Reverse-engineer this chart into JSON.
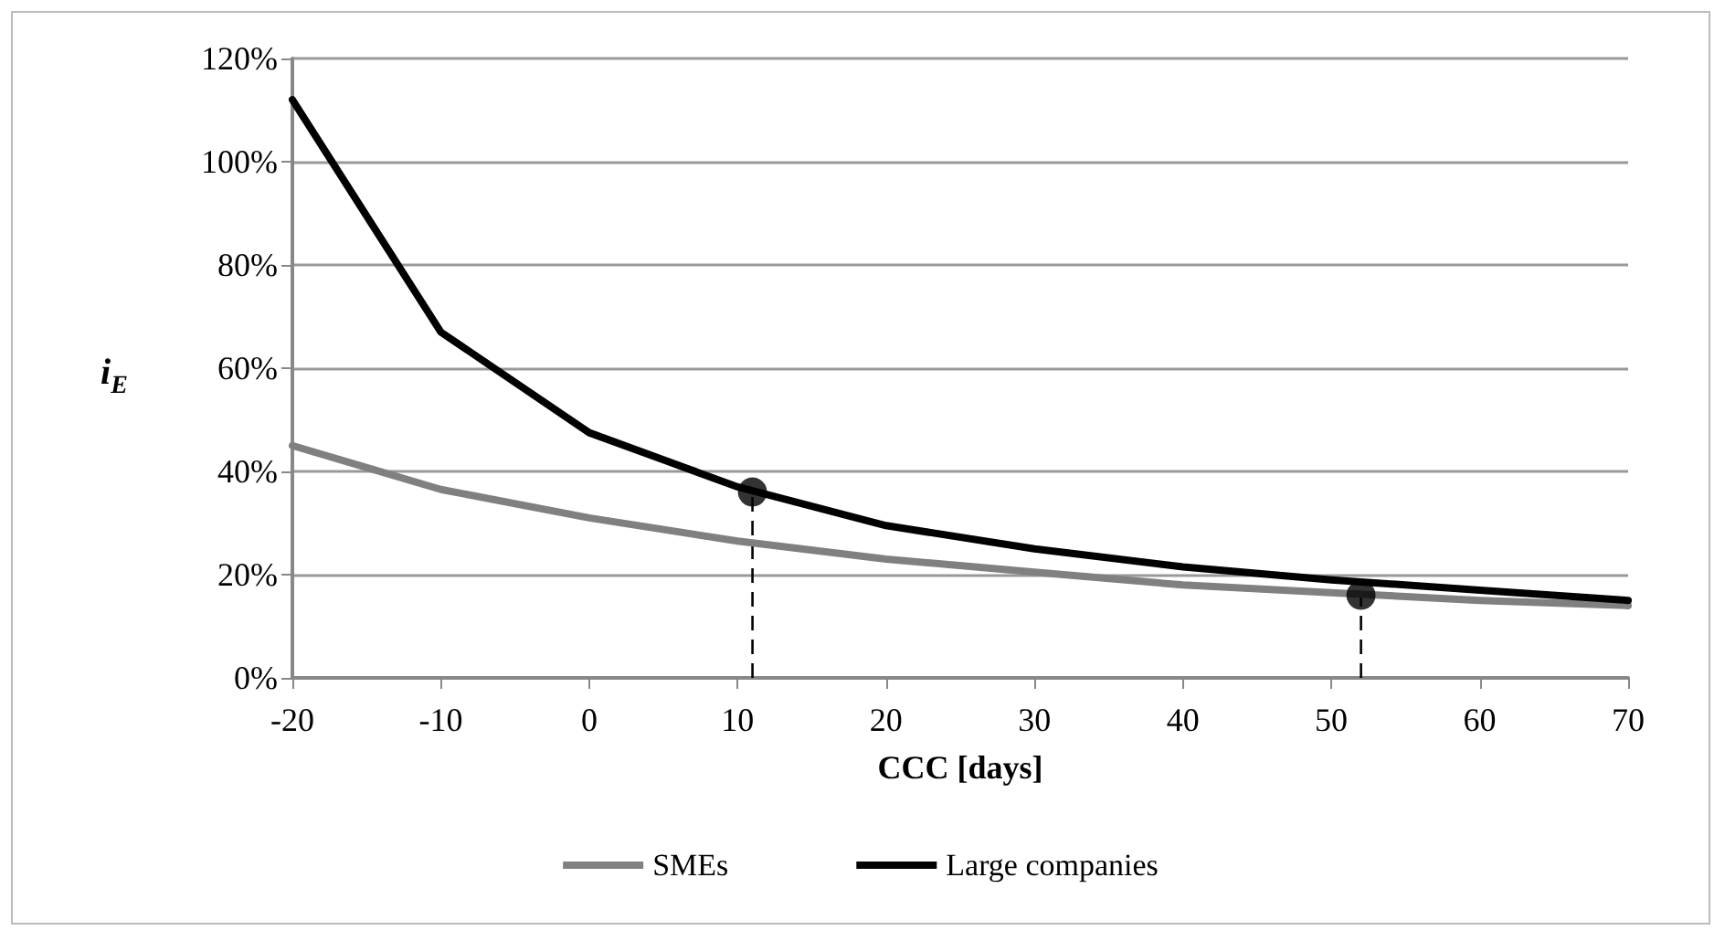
{
  "chart_data": {
    "type": "line",
    "xlabel": "CCC [days]",
    "ylabel": "i$_{E}$",
    "x": [
      -20,
      -10,
      0,
      10,
      20,
      30,
      40,
      50,
      60,
      70
    ],
    "series": [
      {
        "name": "SMEs",
        "color": "#808080",
        "values": [
          45,
          36.5,
          31,
          26.5,
          23,
          20.5,
          18,
          16.5,
          15,
          14
        ]
      },
      {
        "name": "Large companies",
        "color": "#000000",
        "values": [
          112,
          67,
          47.5,
          37,
          29.5,
          25,
          21.5,
          19,
          17,
          15
        ]
      },
      {
        "type": "scatter",
        "color": "#000000",
        "x": [
          11,
          52
        ],
        "values": [
          36,
          16
        ],
        "marker": "circle"
      }
    ],
    "xlim": [
      -20,
      70
    ],
    "xticks": [
      -20,
      -10,
      0,
      10,
      20,
      30,
      40,
      50,
      60,
      70
    ],
    "ylim": [
      0,
      120
    ],
    "yticks": [
      {
        "value": 0,
        "label": "0%"
      },
      {
        "value": 20,
        "label": "20%"
      },
      {
        "value": 40,
        "label": "40%"
      },
      {
        "value": 60,
        "label": "60%"
      },
      {
        "value": 80,
        "label": "80%"
      },
      {
        "value": 100,
        "label": "100%"
      },
      {
        "value": 120,
        "label": "120%"
      }
    ],
    "ref_lines": [
      {
        "axis": "x",
        "value": 11,
        "color": "#000000",
        "line_style": "dashed"
      },
      {
        "axis": "x",
        "value": 52,
        "color": "#000000",
        "line_style": "dashed"
      }
    ],
    "grid": "y",
    "legend": "bottom",
    "marker": "none",
    "line_style": "solid"
  }
}
